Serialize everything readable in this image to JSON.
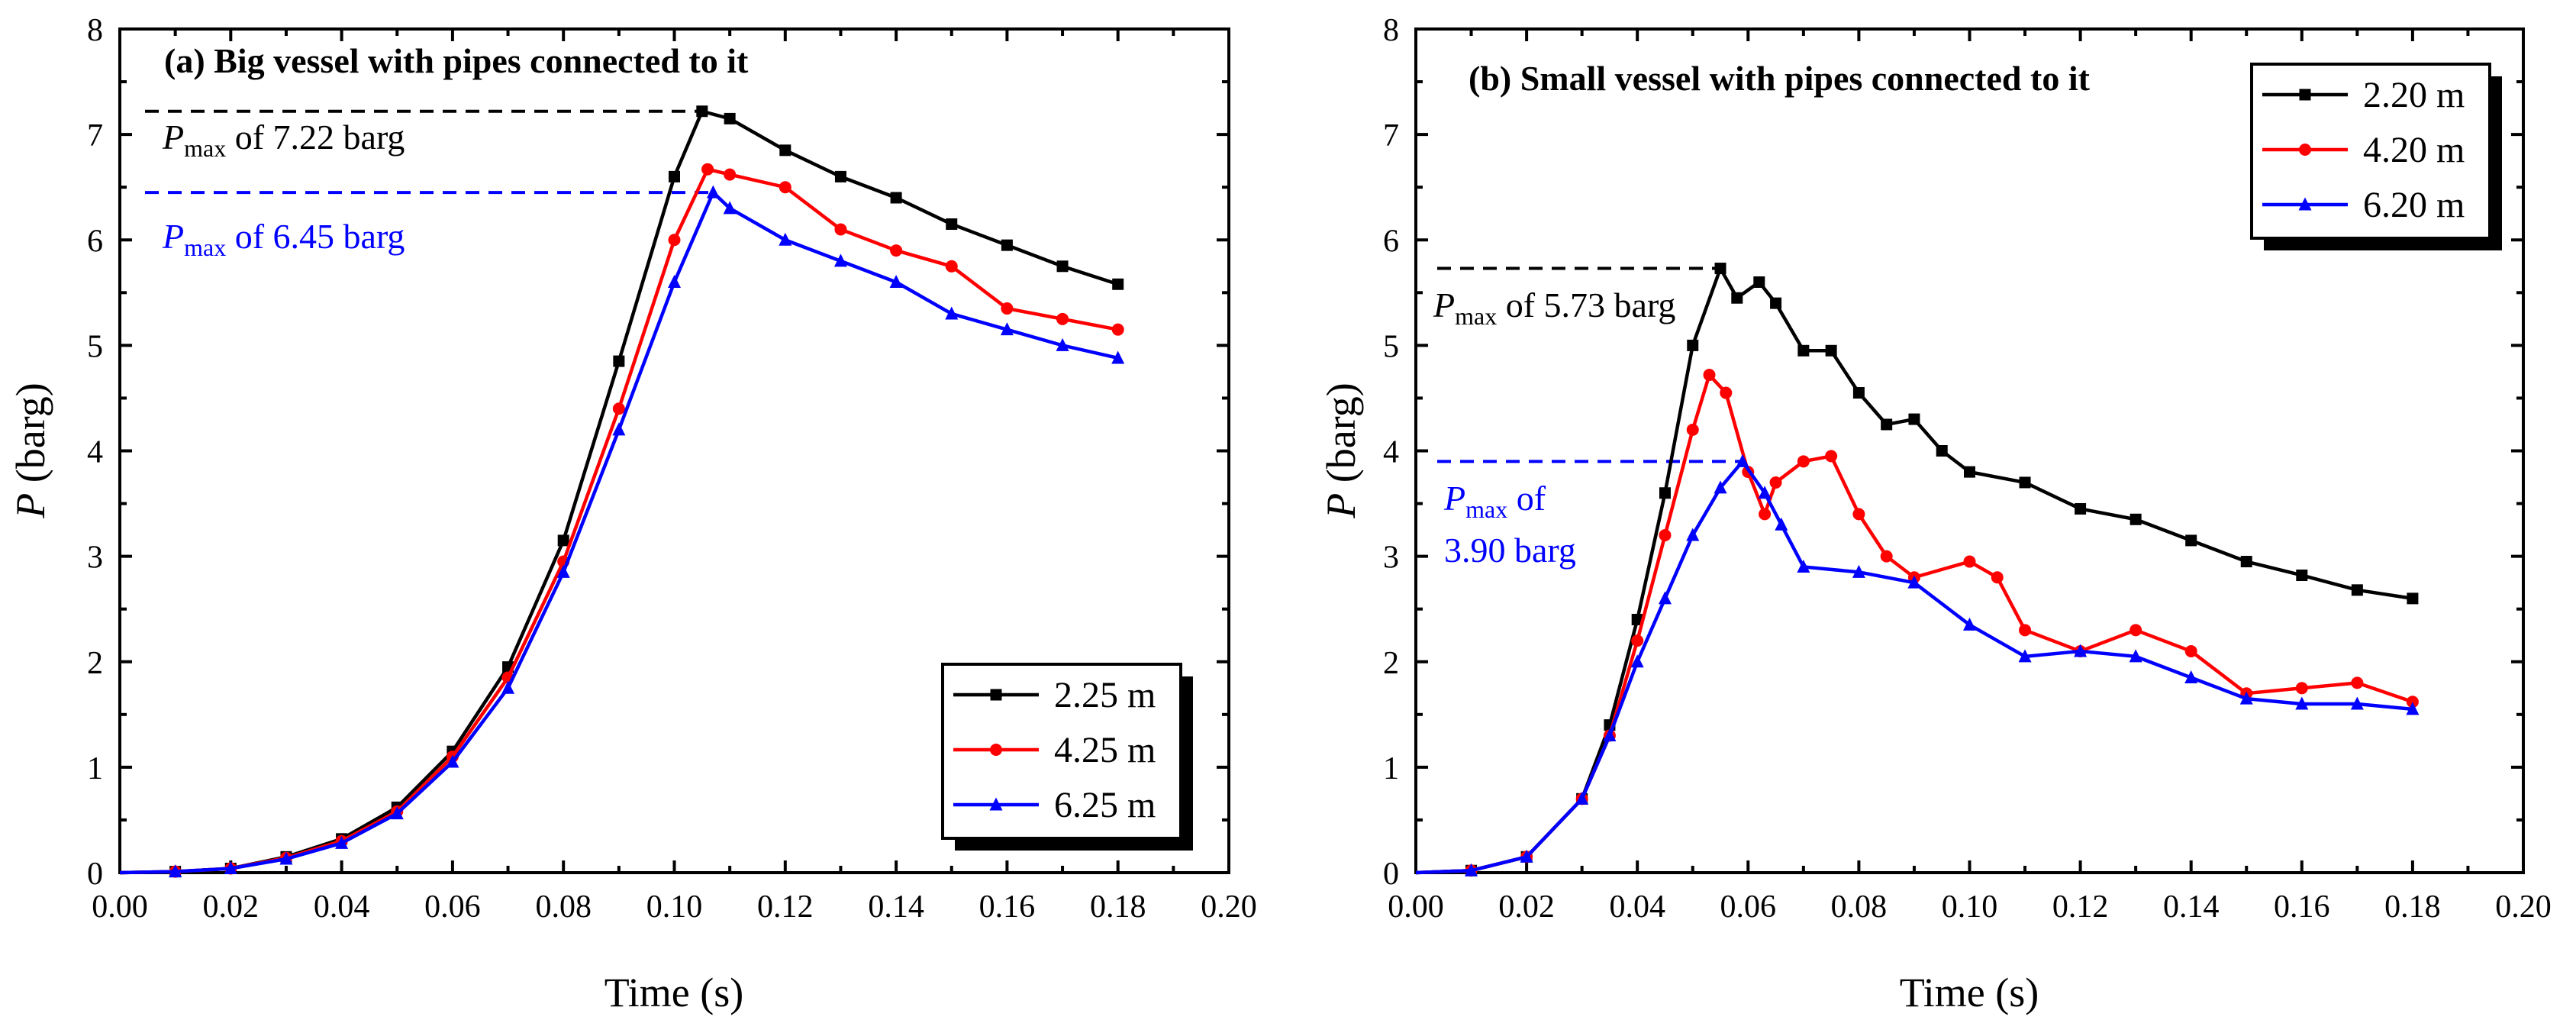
{
  "chart_data": [
    {
      "type": "line",
      "title": "(a) Big vessel with pipes connected to it",
      "xlabel": "Time (s)",
      "ylabel": "P (barg)",
      "xlim": [
        0,
        0.2
      ],
      "ylim": [
        0,
        8
      ],
      "x_ticks": [
        "0.00",
        "0.02",
        "0.04",
        "0.06",
        "0.08",
        "0.10",
        "0.12",
        "0.14",
        "0.16",
        "0.18",
        "0.20"
      ],
      "y_ticks": [
        "0",
        "1",
        "2",
        "3",
        "4",
        "5",
        "6",
        "7",
        "8"
      ],
      "legend_position": "bottom-right",
      "series": [
        {
          "name": "2.25 m",
          "color": "#000000",
          "marker": "square",
          "x": [
            0,
            0.01,
            0.02,
            0.03,
            0.04,
            0.05,
            0.06,
            0.07,
            0.08,
            0.09,
            0.1,
            0.105,
            0.11,
            0.12,
            0.13,
            0.14,
            0.15,
            0.16,
            0.17,
            0.18
          ],
          "y": [
            0,
            0.01,
            0.04,
            0.15,
            0.32,
            0.62,
            1.15,
            1.95,
            3.15,
            4.85,
            6.6,
            7.22,
            7.15,
            6.85,
            6.6,
            6.4,
            6.15,
            5.95,
            5.75,
            5.58
          ]
        },
        {
          "name": "4.25 m",
          "color": "#ff0000",
          "marker": "circle",
          "x": [
            0,
            0.01,
            0.02,
            0.03,
            0.04,
            0.05,
            0.06,
            0.07,
            0.08,
            0.09,
            0.1,
            0.106,
            0.11,
            0.12,
            0.13,
            0.14,
            0.15,
            0.16,
            0.17,
            0.18
          ],
          "y": [
            0,
            0.01,
            0.04,
            0.14,
            0.3,
            0.58,
            1.1,
            1.85,
            2.95,
            4.4,
            6.0,
            6.67,
            6.62,
            6.5,
            6.1,
            5.9,
            5.75,
            5.35,
            5.25,
            5.15
          ]
        },
        {
          "name": "6.25 m",
          "color": "#0000ff",
          "marker": "triangle",
          "x": [
            0,
            0.01,
            0.02,
            0.03,
            0.04,
            0.05,
            0.06,
            0.07,
            0.08,
            0.09,
            0.1,
            0.107,
            0.11,
            0.12,
            0.13,
            0.14,
            0.15,
            0.16,
            0.17,
            0.18
          ],
          "y": [
            0,
            0.01,
            0.04,
            0.13,
            0.28,
            0.56,
            1.05,
            1.75,
            2.85,
            4.2,
            5.6,
            6.45,
            6.3,
            6.0,
            5.8,
            5.6,
            5.3,
            5.15,
            5.0,
            4.88
          ]
        }
      ],
      "annotations": [
        {
          "label": "P",
          "sub": "max",
          "rest": " of 7.22 barg",
          "value": 7.22,
          "color": "#000000"
        },
        {
          "label": "P",
          "sub": "max",
          "rest": " of 6.45 barg",
          "value": 6.45,
          "color": "#0000ff"
        }
      ]
    },
    {
      "type": "line",
      "title": "(b) Small vessel with pipes connected to it",
      "xlabel": "Time (s)",
      "ylabel": "P (barg)",
      "xlim": [
        0,
        0.2
      ],
      "ylim": [
        0,
        8
      ],
      "x_ticks": [
        "0.00",
        "0.02",
        "0.04",
        "0.06",
        "0.08",
        "0.10",
        "0.12",
        "0.14",
        "0.16",
        "0.18",
        "0.20"
      ],
      "y_ticks": [
        "0",
        "1",
        "2",
        "3",
        "4",
        "5",
        "6",
        "7",
        "8"
      ],
      "legend_position": "top-right",
      "series": [
        {
          "name": "2.20 m",
          "color": "#000000",
          "marker": "square",
          "x": [
            0,
            0.01,
            0.02,
            0.03,
            0.035,
            0.04,
            0.045,
            0.05,
            0.055,
            0.058,
            0.062,
            0.065,
            0.07,
            0.075,
            0.08,
            0.085,
            0.09,
            0.095,
            0.1,
            0.11,
            0.12,
            0.13,
            0.14,
            0.15,
            0.16,
            0.17,
            0.18
          ],
          "y": [
            0,
            0.02,
            0.15,
            0.7,
            1.4,
            2.4,
            3.6,
            5.0,
            5.73,
            5.45,
            5.6,
            5.4,
            4.95,
            4.95,
            4.55,
            4.25,
            4.3,
            4.0,
            3.8,
            3.7,
            3.45,
            3.35,
            3.15,
            2.95,
            2.82,
            2.68,
            2.6
          ]
        },
        {
          "name": "4.20 m",
          "color": "#ff0000",
          "marker": "circle",
          "x": [
            0,
            0.01,
            0.02,
            0.03,
            0.035,
            0.04,
            0.045,
            0.05,
            0.053,
            0.056,
            0.06,
            0.063,
            0.065,
            0.07,
            0.075,
            0.08,
            0.085,
            0.09,
            0.1,
            0.105,
            0.11,
            0.12,
            0.13,
            0.14,
            0.15,
            0.16,
            0.17,
            0.18
          ],
          "y": [
            0,
            0.02,
            0.15,
            0.7,
            1.3,
            2.2,
            3.2,
            4.2,
            4.72,
            4.55,
            3.8,
            3.4,
            3.7,
            3.9,
            3.95,
            3.4,
            3.0,
            2.8,
            2.95,
            2.8,
            2.3,
            2.1,
            2.3,
            2.1,
            1.7,
            1.75,
            1.8,
            1.62
          ]
        },
        {
          "name": "6.20 m",
          "color": "#0000ff",
          "marker": "triangle",
          "x": [
            0,
            0.01,
            0.02,
            0.03,
            0.035,
            0.04,
            0.045,
            0.05,
            0.055,
            0.059,
            0.063,
            0.066,
            0.07,
            0.08,
            0.09,
            0.1,
            0.11,
            0.12,
            0.13,
            0.14,
            0.15,
            0.16,
            0.17,
            0.18
          ],
          "y": [
            0,
            0.02,
            0.15,
            0.7,
            1.3,
            2.0,
            2.6,
            3.2,
            3.65,
            3.9,
            3.6,
            3.3,
            2.9,
            2.85,
            2.75,
            2.35,
            2.05,
            2.1,
            2.05,
            1.85,
            1.65,
            1.6,
            1.6,
            1.55
          ]
        }
      ],
      "annotations": [
        {
          "label": "P",
          "sub": "max",
          "rest": " of 5.73 barg",
          "value": 5.73,
          "color": "#000000"
        },
        {
          "label": "P",
          "sub": "max",
          "rest": " of",
          "line2": "3.90 barg",
          "value": 3.9,
          "color": "#0000ff"
        }
      ]
    }
  ]
}
